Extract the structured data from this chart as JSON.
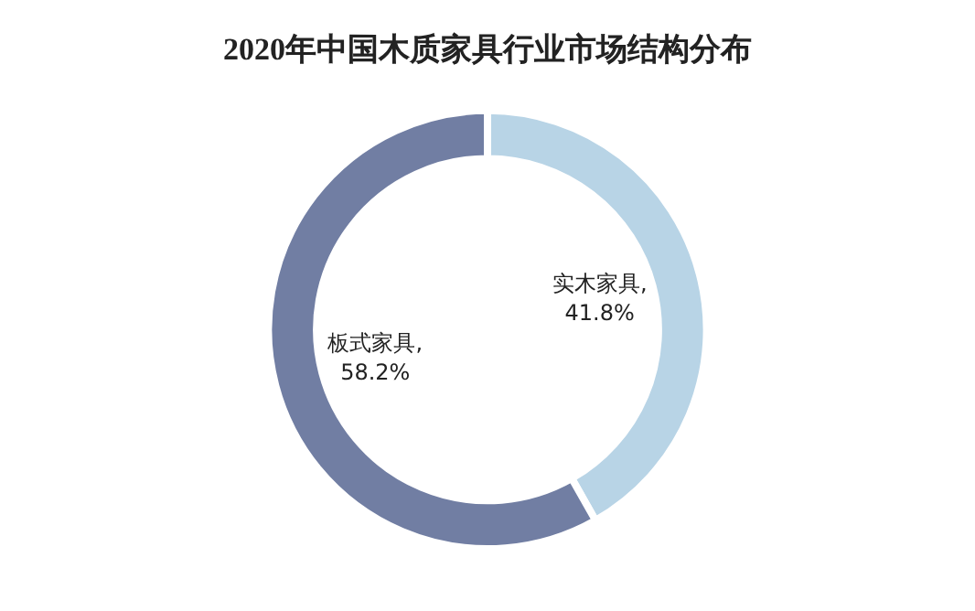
{
  "chart_data": {
    "type": "donut",
    "title": "2020年中国木质家具行业市场结构分布",
    "categories": [
      "实木家具",
      "板式家具"
    ],
    "values": [
      41.8,
      58.2
    ],
    "colors": [
      "#b8d4e6",
      "#717ea3"
    ],
    "value_labels": [
      ", 41.8%",
      ", 58.2%"
    ]
  }
}
